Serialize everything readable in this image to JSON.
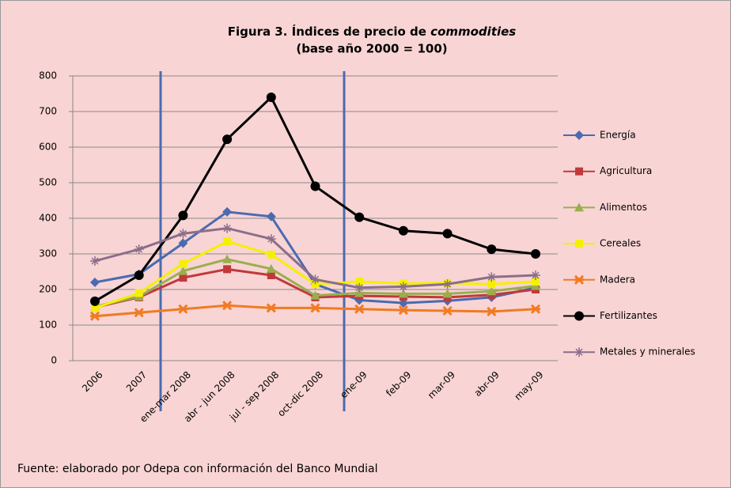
{
  "chart_data": {
    "type": "line",
    "title": "Figura 3. Índices de precio de",
    "title_italic": "commodities",
    "subtitle": "(base año 2000 = 100)",
    "source": "Fuente: elaborado por Odepa con información del Banco Mundial",
    "categories": [
      "2006",
      "2007",
      "ene-mar 2008",
      "abr - jun 2008",
      "jul - sep 2008",
      "oct-dic 2008",
      "ene-09",
      "feb-09",
      "mar-09",
      "abr-09",
      "may-09"
    ],
    "series": [
      {
        "name": "Energía",
        "color": "#4a6bb0",
        "marker": "diamond",
        "values": [
          220,
          243,
          330,
          418,
          405,
          215,
          170,
          162,
          168,
          178,
          205
        ]
      },
      {
        "name": "Agricultura",
        "color": "#c0393b",
        "marker": "square",
        "values": [
          150,
          178,
          233,
          257,
          240,
          178,
          182,
          180,
          178,
          185,
          200
        ]
      },
      {
        "name": "Alimentos",
        "color": "#9aae4e",
        "marker": "triangle",
        "values": [
          152,
          180,
          252,
          285,
          258,
          183,
          190,
          188,
          188,
          195,
          210
        ]
      },
      {
        "name": "Cereales",
        "color": "#f4f000",
        "marker": "square",
        "values": [
          148,
          190,
          272,
          335,
          298,
          215,
          222,
          217,
          218,
          215,
          222
        ]
      },
      {
        "name": "Madera",
        "color": "#f07b22",
        "marker": "x",
        "values": [
          125,
          135,
          145,
          155,
          148,
          148,
          145,
          142,
          140,
          138,
          145
        ]
      },
      {
        "name": "Fertilizantes",
        "color": "#000000",
        "marker": "circle",
        "values": [
          167,
          240,
          408,
          622,
          740,
          490,
          403,
          365,
          357,
          313,
          300
        ]
      },
      {
        "name": "Metales y minerales",
        "color": "#8a6f8a",
        "marker": "plus",
        "values": [
          280,
          313,
          357,
          372,
          342,
          228,
          205,
          208,
          215,
          235,
          240
        ]
      }
    ],
    "ylim": [
      0,
      800
    ],
    "yticks": [
      0,
      100,
      200,
      300,
      400,
      500,
      600,
      700,
      800
    ],
    "grid": true,
    "legend": "right"
  }
}
